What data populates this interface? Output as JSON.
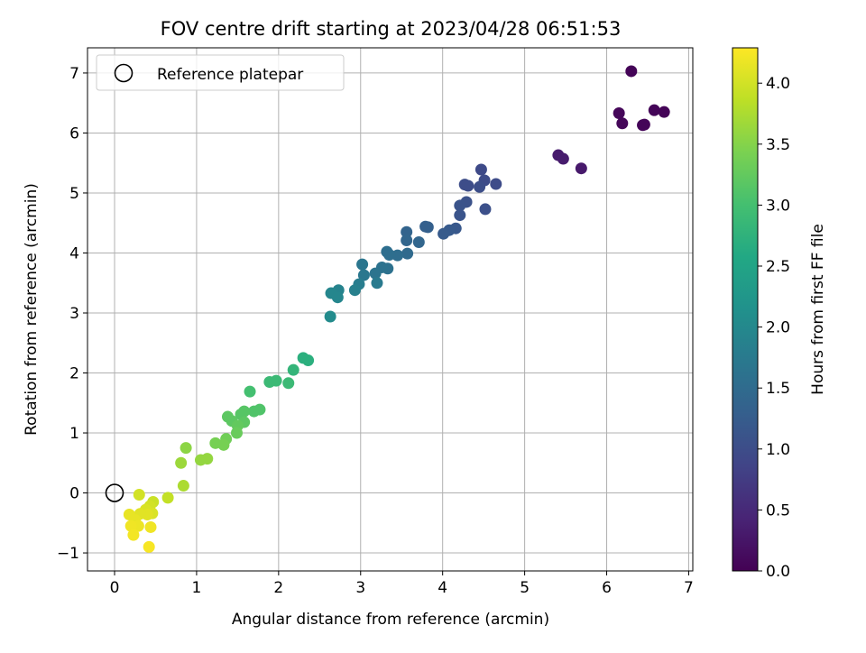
{
  "chart_data": {
    "type": "scatter",
    "title": "FOV centre drift starting at 2023/04/28 06:51:53",
    "xlabel": "Angular distance from reference (arcmin)",
    "ylabel": "Rotation from reference (arcmin)",
    "xlim": [
      -0.33,
      7.05
    ],
    "ylim": [
      -1.3,
      7.42
    ],
    "xticks": [
      0,
      1,
      2,
      3,
      4,
      5,
      6,
      7
    ],
    "xtick_labels": [
      "0",
      "1",
      "2",
      "3",
      "4",
      "5",
      "6",
      "7"
    ],
    "yticks": [
      -1,
      0,
      1,
      2,
      3,
      4,
      5,
      6,
      7
    ],
    "ytick_labels": [
      "−1",
      "0",
      "1",
      "2",
      "3",
      "4",
      "5",
      "6",
      "7"
    ],
    "grid": true,
    "legend": {
      "position": "top-left",
      "entries": [
        "Reference platepar"
      ]
    },
    "reference_point": {
      "name": "Reference platepar",
      "x": 0,
      "y": 0,
      "marker": "open-circle"
    },
    "colorbar": {
      "label": "Hours from first FF file",
      "colormap": "viridis",
      "range": [
        0.0,
        4.29
      ],
      "ticks": [
        0.0,
        0.5,
        1.0,
        1.5,
        2.0,
        2.5,
        3.0,
        3.5,
        4.0
      ],
      "tick_labels": [
        "0.0",
        "0.5",
        "1.0",
        "1.5",
        "2.0",
        "2.5",
        "3.0",
        "3.5",
        "4.0"
      ]
    },
    "series": [
      {
        "points": [
          {
            "x": 6.3,
            "y": 7.03,
            "t": 0.04
          },
          {
            "x": 6.15,
            "y": 6.33,
            "t": 0.07
          },
          {
            "x": 6.19,
            "y": 6.16,
            "t": 0.07
          },
          {
            "x": 6.58,
            "y": 6.38,
            "t": 0.05
          },
          {
            "x": 6.7,
            "y": 6.35,
            "t": 0.04
          },
          {
            "x": 6.44,
            "y": 6.13,
            "t": 0.05
          },
          {
            "x": 6.46,
            "y": 6.14,
            "t": 0.05
          },
          {
            "x": 5.41,
            "y": 5.63,
            "t": 0.32
          },
          {
            "x": 5.47,
            "y": 5.57,
            "t": 0.33
          },
          {
            "x": 5.69,
            "y": 5.41,
            "t": 0.3
          },
          {
            "x": 4.47,
            "y": 5.39,
            "t": 0.95
          },
          {
            "x": 4.65,
            "y": 5.15,
            "t": 0.98
          },
          {
            "x": 4.51,
            "y": 5.21,
            "t": 0.98
          },
          {
            "x": 4.27,
            "y": 5.14,
            "t": 1.0
          },
          {
            "x": 4.31,
            "y": 5.12,
            "t": 1.0
          },
          {
            "x": 4.45,
            "y": 5.1,
            "t": 1.02
          },
          {
            "x": 4.52,
            "y": 4.73,
            "t": 1.05
          },
          {
            "x": 4.29,
            "y": 4.85,
            "t": 1.08
          },
          {
            "x": 4.21,
            "y": 4.79,
            "t": 1.1
          },
          {
            "x": 4.21,
            "y": 4.63,
            "t": 1.12
          },
          {
            "x": 4.16,
            "y": 4.41,
            "t": 1.18
          },
          {
            "x": 4.08,
            "y": 4.38,
            "t": 1.2
          },
          {
            "x": 4.01,
            "y": 4.32,
            "t": 1.22
          },
          {
            "x": 3.82,
            "y": 4.43,
            "t": 1.3
          },
          {
            "x": 3.79,
            "y": 4.44,
            "t": 1.3
          },
          {
            "x": 3.56,
            "y": 4.35,
            "t": 1.38
          },
          {
            "x": 3.56,
            "y": 4.21,
            "t": 1.4
          },
          {
            "x": 3.71,
            "y": 4.18,
            "t": 1.4
          },
          {
            "x": 3.57,
            "y": 3.99,
            "t": 1.48
          },
          {
            "x": 3.45,
            "y": 3.96,
            "t": 1.52
          },
          {
            "x": 3.32,
            "y": 4.02,
            "t": 1.55
          },
          {
            "x": 3.35,
            "y": 3.97,
            "t": 1.55
          },
          {
            "x": 3.33,
            "y": 3.74,
            "t": 1.6
          },
          {
            "x": 3.26,
            "y": 3.76,
            "t": 1.62
          },
          {
            "x": 3.18,
            "y": 3.66,
            "t": 1.65
          },
          {
            "x": 3.02,
            "y": 3.81,
            "t": 1.68
          },
          {
            "x": 3.04,
            "y": 3.63,
            "t": 1.7
          },
          {
            "x": 3.2,
            "y": 3.5,
            "t": 1.75
          },
          {
            "x": 2.98,
            "y": 3.48,
            "t": 1.8
          },
          {
            "x": 2.93,
            "y": 3.38,
            "t": 1.85
          },
          {
            "x": 2.73,
            "y": 3.38,
            "t": 1.9
          },
          {
            "x": 2.64,
            "y": 3.33,
            "t": 1.95
          },
          {
            "x": 2.72,
            "y": 3.26,
            "t": 1.95
          },
          {
            "x": 2.63,
            "y": 2.94,
            "t": 2.05
          },
          {
            "x": 2.3,
            "y": 2.25,
            "t": 2.7
          },
          {
            "x": 2.36,
            "y": 2.21,
            "t": 2.7
          },
          {
            "x": 2.18,
            "y": 2.05,
            "t": 2.8
          },
          {
            "x": 2.12,
            "y": 1.83,
            "t": 2.9
          },
          {
            "x": 1.89,
            "y": 1.85,
            "t": 2.9
          },
          {
            "x": 1.97,
            "y": 1.87,
            "t": 2.9
          },
          {
            "x": 1.65,
            "y": 1.69,
            "t": 3.0
          },
          {
            "x": 1.7,
            "y": 1.36,
            "t": 3.1
          },
          {
            "x": 1.77,
            "y": 1.39,
            "t": 3.1
          },
          {
            "x": 1.58,
            "y": 1.36,
            "t": 3.15
          },
          {
            "x": 1.54,
            "y": 1.31,
            "t": 3.15
          },
          {
            "x": 1.38,
            "y": 1.27,
            "t": 3.2
          },
          {
            "x": 1.43,
            "y": 1.2,
            "t": 3.2
          },
          {
            "x": 1.58,
            "y": 1.18,
            "t": 3.2
          },
          {
            "x": 1.5,
            "y": 1.12,
            "t": 3.25
          },
          {
            "x": 1.49,
            "y": 1.0,
            "t": 3.3
          },
          {
            "x": 1.36,
            "y": 0.9,
            "t": 3.35
          },
          {
            "x": 1.23,
            "y": 0.83,
            "t": 3.4
          },
          {
            "x": 1.33,
            "y": 0.8,
            "t": 3.4
          },
          {
            "x": 0.87,
            "y": 0.75,
            "t": 3.55
          },
          {
            "x": 1.05,
            "y": 0.55,
            "t": 3.6
          },
          {
            "x": 1.13,
            "y": 0.57,
            "t": 3.6
          },
          {
            "x": 0.81,
            "y": 0.5,
            "t": 3.65
          },
          {
            "x": 0.84,
            "y": 0.12,
            "t": 3.75
          },
          {
            "x": 0.65,
            "y": -0.08,
            "t": 3.9
          },
          {
            "x": 0.47,
            "y": -0.15,
            "t": 3.95
          },
          {
            "x": 0.3,
            "y": -0.03,
            "t": 4.0
          },
          {
            "x": 0.43,
            "y": -0.22,
            "t": 4.0
          },
          {
            "x": 0.38,
            "y": -0.28,
            "t": 4.05
          },
          {
            "x": 0.46,
            "y": -0.34,
            "t": 4.05
          },
          {
            "x": 0.4,
            "y": -0.36,
            "t": 4.1
          },
          {
            "x": 0.31,
            "y": -0.35,
            "t": 4.1
          },
          {
            "x": 0.18,
            "y": -0.36,
            "t": 4.15
          },
          {
            "x": 0.25,
            "y": -0.45,
            "t": 4.15
          },
          {
            "x": 0.29,
            "y": -0.55,
            "t": 4.18
          },
          {
            "x": 0.2,
            "y": -0.55,
            "t": 4.2
          },
          {
            "x": 0.44,
            "y": -0.57,
            "t": 4.2
          },
          {
            "x": 0.23,
            "y": -0.7,
            "t": 4.22
          },
          {
            "x": 0.42,
            "y": -0.9,
            "t": 4.25
          }
        ]
      }
    ]
  }
}
